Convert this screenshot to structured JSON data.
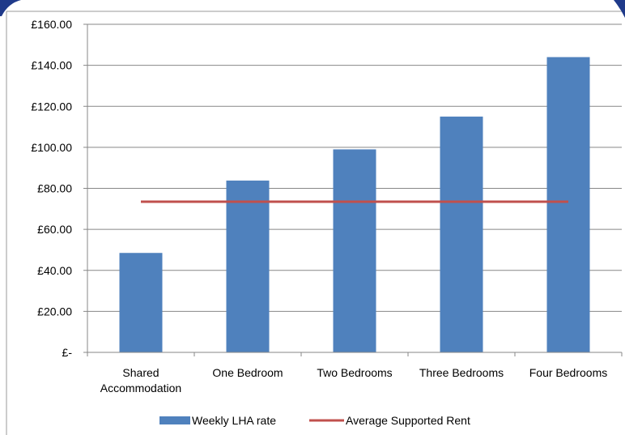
{
  "chart_data": {
    "type": "bar",
    "categories": [
      [
        "Shared",
        "Accommodation"
      ],
      [
        "One Bedroom"
      ],
      [
        "Two Bedrooms"
      ],
      [
        "Three Bedrooms"
      ],
      [
        "Four Bedrooms"
      ]
    ],
    "y_tick_labels": [
      "£-",
      "£20.00",
      "£40.00",
      "£60.00",
      "£80.00",
      "£100.00",
      "£120.00",
      "£140.00",
      "£160.00"
    ],
    "ylim": [
      0,
      160
    ],
    "y_tick_step": 20,
    "grid": true,
    "legend_position": "bottom",
    "series": [
      {
        "name": "Weekly LHA rate",
        "kind": "bar",
        "color": "#4F81BD",
        "values": [
          48.5,
          83.8,
          99.0,
          115.0,
          144.0
        ]
      },
      {
        "name": "Average Supported Rent",
        "kind": "line",
        "color": "#C0504D",
        "values": [
          73.5,
          73.5,
          73.5,
          73.5,
          73.5
        ]
      }
    ]
  }
}
